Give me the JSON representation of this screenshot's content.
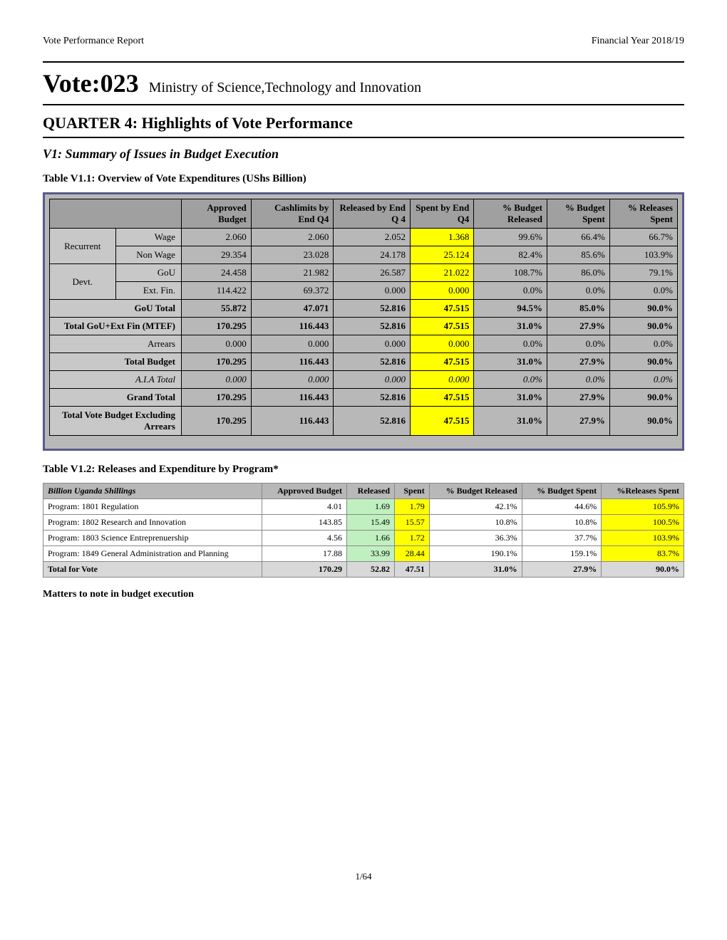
{
  "header": {
    "left": "Vote Performance Report",
    "right": "Financial Year 2018/19"
  },
  "vote": {
    "prefix": "Vote:023",
    "name": "Ministry of Science,Technology and Innovation"
  },
  "section_heading": "QUARTER 4: Highlights of Vote Performance",
  "subsection_heading": "V1: Summary of Issues in Budget Execution",
  "table1_title": "Table V1.1: Overview of Vote Expenditures (UShs Billion)",
  "table1": {
    "headers": [
      "",
      "Approved Budget",
      "Cashlimits by End Q4",
      "Released by End Q 4",
      "Spent by End Q4",
      "% Budget Released",
      "% Budget Spent",
      "% Releases Spent"
    ],
    "row_groups": {
      "recurrent": "Recurrent",
      "devt": "Devt."
    },
    "rows": [
      {
        "group": "recurrent",
        "label": "Wage",
        "vals": [
          "2.060",
          "2.060",
          "2.052",
          "1.368",
          "99.6%",
          "66.4%",
          "66.7%"
        ],
        "hl": 3
      },
      {
        "group": "recurrent",
        "label": "Non Wage",
        "vals": [
          "29.354",
          "23.028",
          "24.178",
          "25.124",
          "82.4%",
          "85.6%",
          "103.9%"
        ],
        "hl": 3
      },
      {
        "group": "devt",
        "label": "GoU",
        "vals": [
          "24.458",
          "21.982",
          "26.587",
          "21.022",
          "108.7%",
          "86.0%",
          "79.1%"
        ],
        "hl": 3
      },
      {
        "group": "devt",
        "label": "Ext. Fin.",
        "vals": [
          "114.422",
          "69.372",
          "0.000",
          "0.000",
          "0.0%",
          "0.0%",
          "0.0%"
        ],
        "hl": 3
      },
      {
        "label": "GoU Total",
        "vals": [
          "55.872",
          "47.071",
          "52.816",
          "47.515",
          "94.5%",
          "85.0%",
          "90.0%"
        ],
        "bold": true,
        "hl": 3
      },
      {
        "label": "Total GoU+Ext Fin (MTEF)",
        "vals": [
          "170.295",
          "116.443",
          "52.816",
          "47.515",
          "31.0%",
          "27.9%",
          "90.0%"
        ],
        "bold": true,
        "hl": 3
      },
      {
        "label": "Arrears",
        "vals": [
          "0.000",
          "0.000",
          "0.000",
          "0.000",
          "0.0%",
          "0.0%",
          "0.0%"
        ],
        "hl": 3
      },
      {
        "label": "Total Budget",
        "vals": [
          "170.295",
          "116.443",
          "52.816",
          "47.515",
          "31.0%",
          "27.9%",
          "90.0%"
        ],
        "bold": true,
        "hl": 3
      },
      {
        "label": "A.I.A Total",
        "vals": [
          "0.000",
          "0.000",
          "0.000",
          "0.000",
          "0.0%",
          "0.0%",
          "0.0%"
        ],
        "italic": true,
        "hl": 3
      },
      {
        "label": "Grand Total",
        "vals": [
          "170.295",
          "116.443",
          "52.816",
          "47.515",
          "31.0%",
          "27.9%",
          "90.0%"
        ],
        "bold": true,
        "hl": 3
      },
      {
        "label": "Total Vote Budget Excluding Arrears",
        "vals": [
          "170.295",
          "116.443",
          "52.816",
          "47.515",
          "31.0%",
          "27.9%",
          "90.0%"
        ],
        "bold": true,
        "hl": 3
      }
    ]
  },
  "table2_title": "Table V1.2: Releases and Expenditure by Program*",
  "table2": {
    "headers": [
      "Billion Uganda Shillings",
      "Approved Budget",
      "Released",
      "Spent",
      "% Budget Released",
      "% Budget Spent",
      "%Releases Spent"
    ],
    "rows": [
      {
        "label": "Program: 1801 Regulation",
        "vals": [
          "4.01",
          "1.69",
          "1.79",
          "42.1%",
          "44.6%",
          "105.9%"
        ]
      },
      {
        "label": "Program: 1802 Research and Innovation",
        "vals": [
          "143.85",
          "15.49",
          "15.57",
          "10.8%",
          "10.8%",
          "100.5%"
        ]
      },
      {
        "label": "Program: 1803 Science Entreprenuership",
        "vals": [
          "4.56",
          "1.66",
          "1.72",
          "36.3%",
          "37.7%",
          "103.9%"
        ]
      },
      {
        "label": "Program: 1849 General Administration and Planning",
        "vals": [
          "17.88",
          "33.99",
          "28.44",
          "190.1%",
          "159.1%",
          "83.7%"
        ]
      }
    ],
    "total": {
      "label": "Total for Vote",
      "vals": [
        "170.29",
        "52.82",
        "47.51",
        "31.0%",
        "27.9%",
        "90.0%"
      ]
    }
  },
  "matters_heading": "Matters to note in budget execution",
  "page_number": "1/64",
  "colors": {
    "border_outer": "#5a5a8a",
    "table_bg": "#b8b8b8",
    "highlight_yellow": "#ffff00",
    "highlight_green": "#c0f0c0"
  }
}
